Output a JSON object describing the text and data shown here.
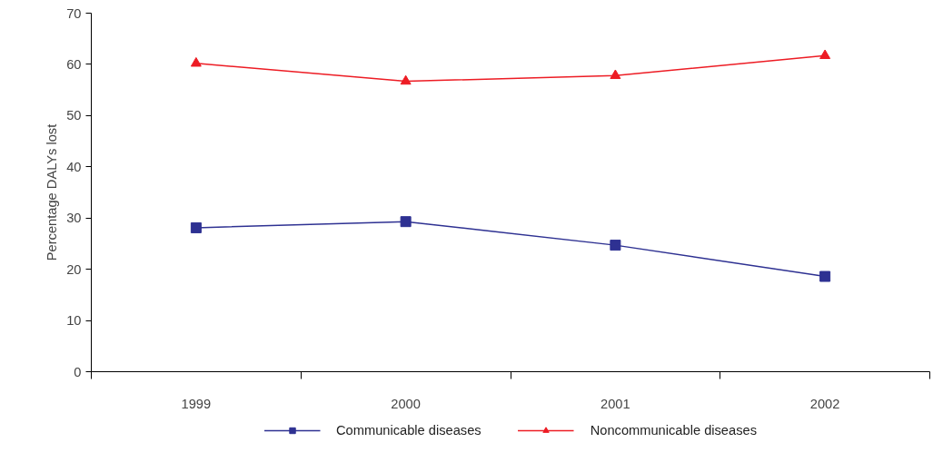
{
  "chart_data": {
    "type": "line",
    "ylabel": "Percentage DALYs lost",
    "categories": [
      "1999",
      "2000",
      "2001",
      "2002"
    ],
    "series": [
      {
        "name": "Communicable diseases",
        "color": "#2e3192",
        "marker": "square",
        "values": [
          28.1,
          29.3,
          24.7,
          18.6
        ]
      },
      {
        "name": "Noncommunicable diseases",
        "color": "#ed1c24",
        "marker": "triangle",
        "values": [
          60.2,
          56.7,
          57.8,
          61.7
        ]
      }
    ],
    "ylim": [
      0,
      70
    ],
    "yticks": [
      0,
      10,
      20,
      30,
      40,
      50,
      60,
      70
    ],
    "grid": false,
    "legend": "bottom",
    "line_style": "solid"
  }
}
